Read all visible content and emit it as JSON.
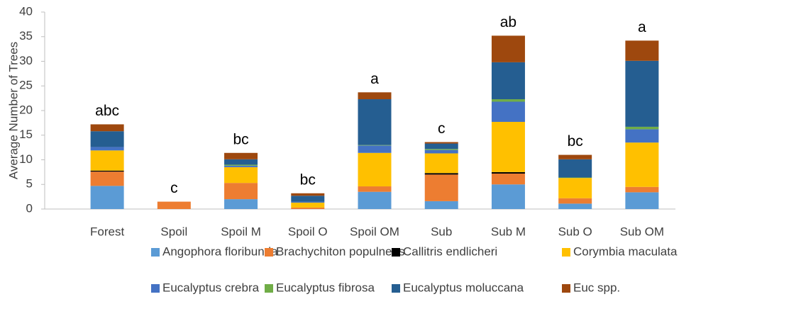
{
  "chart_data": {
    "type": "stacked_bar",
    "y_label": "Average Number of Trees",
    "categories": [
      "Forest",
      "Spoil",
      "Spoil M",
      "Spoil O",
      "Spoil OM",
      "Sub",
      "Sub M",
      "Sub O",
      "Sub OM"
    ],
    "annotations": [
      "abc",
      "c",
      "bc",
      "bc",
      "a",
      "c",
      "ab",
      "bc",
      "a"
    ],
    "ylim": [
      0,
      40
    ],
    "yticks": [
      0,
      5,
      10,
      15,
      20,
      25,
      30,
      35,
      40
    ],
    "grid": false,
    "series": [
      {
        "name": "Angophora floribunda",
        "color": "#5b9bd5",
        "values": [
          4.7,
          0,
          2.0,
          0,
          3.5,
          1.6,
          5.0,
          1.1,
          3.4
        ]
      },
      {
        "name": "Brachychiton populneus",
        "color": "#ed7d31",
        "values": [
          2.9,
          1.5,
          3.3,
          0.3,
          1.1,
          5.4,
          2.2,
          1.1,
          1.1
        ]
      },
      {
        "name": "Callitris endlicheri",
        "color": "#000000",
        "values": [
          0.2,
          0,
          0,
          0,
          0,
          0.3,
          0.3,
          0,
          0
        ]
      },
      {
        "name": "Corymbia maculata",
        "color": "#ffc000",
        "values": [
          4.1,
          0,
          3.2,
          1.0,
          6.8,
          4.0,
          10.2,
          4.1,
          9.0
        ]
      },
      {
        "name": "Eucalyptus crebra",
        "color": "#4472c4",
        "values": [
          0.7,
          0,
          0.3,
          0.2,
          1.5,
          0.7,
          4.1,
          0,
          2.7
        ]
      },
      {
        "name": "Eucalyptus fibrosa",
        "color": "#70ad47",
        "values": [
          0,
          0,
          0.2,
          0,
          0.1,
          0.2,
          0.5,
          0.1,
          0.5
        ]
      },
      {
        "name": "Eucalyptus moluccana",
        "color": "#255e91",
        "values": [
          3.2,
          0,
          1.1,
          1.2,
          9.3,
          1.1,
          7.5,
          3.7,
          13.4
        ]
      },
      {
        "name": "Euc spp.",
        "color": "#9e480e",
        "values": [
          1.4,
          0,
          1.3,
          0.5,
          1.4,
          0.3,
          5.4,
          0.9,
          4.1
        ]
      }
    ]
  }
}
